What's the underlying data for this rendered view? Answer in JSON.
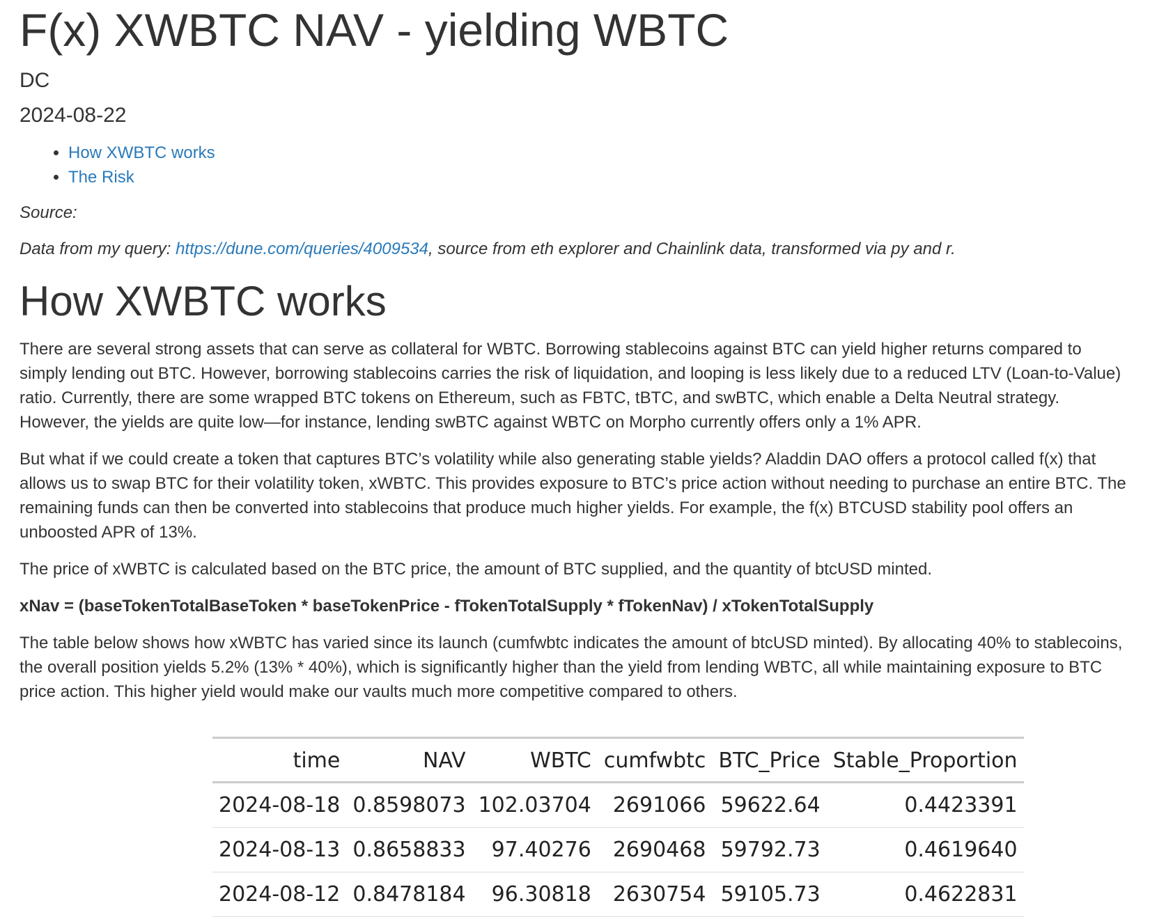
{
  "title": "F(x) XWBTC NAV - yielding WBTC",
  "author": "DC",
  "date": "2024-08-22",
  "toc": [
    {
      "label": "How XWBTC works"
    },
    {
      "label": "The Risk"
    }
  ],
  "source": {
    "label": "Source:",
    "prefix": "Data from my query: ",
    "link": "https://dune.com/queries/4009534",
    "suffix": ", source from eth explorer and Chainlink data, transformed via py and r."
  },
  "section": {
    "heading": "How XWBTC works",
    "para1": "There are several strong assets that can serve as collateral for WBTC. Borrowing stablecoins against BTC can yield higher returns compared to simply lending out BTC. However, borrowing stablecoins carries the risk of liquidation, and looping is less likely due to a reduced LTV (Loan-to-Value) ratio. Currently, there are some wrapped BTC tokens on Ethereum, such as FBTC, tBTC, and swBTC, which enable a Delta Neutral strategy. However, the yields are quite low—for instance, lending swBTC against WBTC on Morpho currently offers only a 1% APR.",
    "para2": "But what if we could create a token that captures BTC’s volatility while also generating stable yields? Aladdin DAO offers a protocol called f(x) that allows us to swap BTC for their volatility token, xWBTC. This provides exposure to BTC’s price action without needing to purchase an entire BTC. The remaining funds can then be converted into stablecoins that produce much higher yields. For example, the f(x) BTCUSD stability pool offers an unboosted APR of 13%.",
    "para3": "The price of xWBTC is calculated based on the BTC price, the amount of BTC supplied, and the quantity of btcUSD minted.",
    "formula": "xNav = (baseTokenTotalBaseToken * baseTokenPrice - fTokenTotalSupply * fTokenNav) / xTokenTotalSupply",
    "para4": "The table below shows how xWBTC has varied since its launch (cumfwbtc indicates the amount of btcUSD minted). By allocating 40% to stablecoins, the overall position yields 5.2% (13% * 40%), which is significantly higher than the yield from lending WBTC, all while maintaining exposure to BTC price action. This higher yield would make our vaults much more competitive compared to others."
  },
  "table": {
    "columns": [
      "time",
      "NAV",
      "WBTC",
      "cumfwbtc",
      "BTC_Price",
      "Stable_Proportion"
    ],
    "rows": [
      [
        "2024-08-18",
        "0.8598073",
        "102.03704",
        "2691066",
        "59622.64",
        "0.4423391"
      ],
      [
        "2024-08-13",
        "0.8658833",
        "97.40276",
        "2690468",
        "59792.73",
        "0.4619640"
      ],
      [
        "2024-08-12",
        "0.8478184",
        "96.30818",
        "2630754",
        "59105.73",
        "0.4622831"
      ]
    ]
  }
}
